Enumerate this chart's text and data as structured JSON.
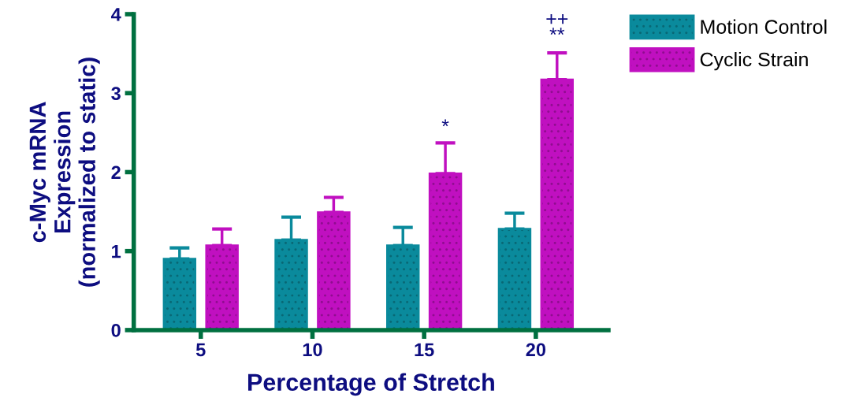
{
  "chart_data": {
    "type": "bar",
    "xlabel": "Percentage of Stretch",
    "ylabel": "c-Myc mRNA\nExpression\n(normalized to static)",
    "categories": [
      "5",
      "10",
      "15",
      "20"
    ],
    "series": [
      {
        "name": "Motion Control",
        "color": "#0a8a9c",
        "values": [
          0.9,
          1.14,
          1.07,
          1.28
        ],
        "errors": [
          [
            0.9,
            1.04
          ],
          [
            1.14,
            1.43
          ],
          [
            1.07,
            1.3
          ],
          [
            1.28,
            1.48
          ]
        ]
      },
      {
        "name": "Cyclic Strain",
        "color": "#c010c0",
        "values": [
          1.07,
          1.49,
          1.98,
          3.17
        ],
        "errors": [
          [
            1.07,
            1.28
          ],
          [
            1.49,
            1.68
          ],
          [
            1.98,
            2.37
          ],
          [
            3.17,
            3.51
          ]
        ]
      }
    ],
    "annotations": [
      "*",
      "**",
      "++"
    ],
    "ylim": [
      0,
      4
    ],
    "yticks": [
      0,
      1,
      2,
      3,
      4
    ],
    "grid": false,
    "legend": "top right"
  }
}
